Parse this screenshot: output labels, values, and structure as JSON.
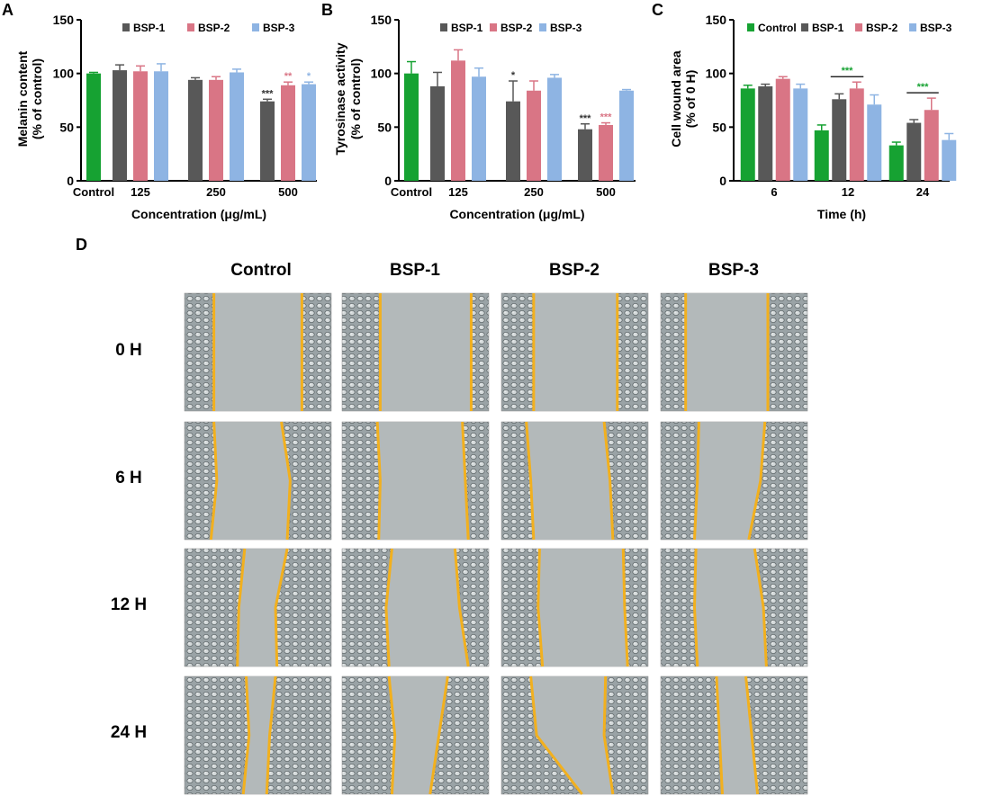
{
  "colors": {
    "Control": "#16a232",
    "BSP-1": "#585858",
    "BSP-2": "#d97585",
    "BSP-3": "#8eb4e3",
    "wound_edge": "#f2b01e",
    "sig_black": "#333333",
    "sig_pink": "#d97585",
    "sig_blue": "#8eb4e3",
    "sig_green": "#16a232"
  },
  "chart_data": [
    {
      "panel": "A",
      "type": "bar",
      "ylabel": [
        "Melanin content",
        "(% of control)"
      ],
      "xlabel": "Concentration (μg/mL)",
      "ylim": [
        0,
        150
      ],
      "yticks": [
        0,
        50,
        100,
        150
      ],
      "legend": [
        "BSP-1",
        "BSP-2",
        "BSP-3"
      ],
      "legend_position": "top",
      "groups": [
        {
          "label": "Control",
          "bars": [
            {
              "series": "Control",
              "value": 100,
              "err": 1
            }
          ]
        },
        {
          "label": "125",
          "bars": [
            {
              "series": "BSP-1",
              "value": 103,
              "err": 5
            },
            {
              "series": "BSP-2",
              "value": 102,
              "err": 5
            },
            {
              "series": "BSP-3",
              "value": 102,
              "err": 7
            }
          ]
        },
        {
          "label": "250",
          "bars": [
            {
              "series": "BSP-1",
              "value": 94,
              "err": 2
            },
            {
              "series": "BSP-2",
              "value": 94,
              "err": 3
            },
            {
              "series": "BSP-3",
              "value": 101,
              "err": 3
            }
          ]
        },
        {
          "label": "500",
          "bars": [
            {
              "series": "BSP-1",
              "value": 74,
              "err": 2,
              "sig": "***",
              "sigColor": "sig_black"
            },
            {
              "series": "BSP-2",
              "value": 89,
              "err": 3,
              "sig": "**",
              "sigColor": "sig_pink"
            },
            {
              "series": "BSP-3",
              "value": 90,
              "err": 2,
              "sig": "*",
              "sigColor": "sig_blue"
            }
          ]
        }
      ]
    },
    {
      "panel": "B",
      "type": "bar",
      "ylabel": [
        "Tyrosinase activity",
        "(% of control)"
      ],
      "xlabel": "Concentration (μg/mL)",
      "ylim": [
        0,
        150
      ],
      "yticks": [
        0,
        50,
        100,
        150
      ],
      "legend": [
        "BSP-1",
        "BSP-2",
        "BSP-3"
      ],
      "legend_position": "top",
      "groups": [
        {
          "label": "Control",
          "bars": [
            {
              "series": "Control",
              "value": 100,
              "err": 11
            }
          ]
        },
        {
          "label": "125",
          "bars": [
            {
              "series": "BSP-1",
              "value": 88,
              "err": 13
            },
            {
              "series": "BSP-2",
              "value": 112,
              "err": 10
            },
            {
              "series": "BSP-3",
              "value": 97,
              "err": 8
            }
          ]
        },
        {
          "label": "250",
          "bars": [
            {
              "series": "BSP-1",
              "value": 74,
              "err": 19,
              "sig": "*",
              "sigColor": "sig_black"
            },
            {
              "series": "BSP-2",
              "value": 84,
              "err": 9
            },
            {
              "series": "BSP-3",
              "value": 96,
              "err": 3
            }
          ]
        },
        {
          "label": "500",
          "bars": [
            {
              "series": "BSP-1",
              "value": 48,
              "err": 5,
              "sig": "***",
              "sigColor": "sig_black"
            },
            {
              "series": "BSP-2",
              "value": 52,
              "err": 2,
              "sig": "***",
              "sigColor": "sig_pink"
            },
            {
              "series": "BSP-3",
              "value": 84,
              "err": 1
            }
          ]
        }
      ]
    },
    {
      "panel": "C",
      "type": "bar",
      "ylabel": [
        "Cell wound area",
        "(% of 0 H)"
      ],
      "xlabel": "Time (h)",
      "ylim": [
        0,
        150
      ],
      "yticks": [
        0,
        50,
        100,
        150
      ],
      "legend": [
        "Control",
        "BSP-1",
        "BSP-2",
        "BSP-3"
      ],
      "legend_position": "top",
      "groups": [
        {
          "label": "6",
          "bars": [
            {
              "series": "Control",
              "value": 86,
              "err": 3
            },
            {
              "series": "BSP-1",
              "value": 88,
              "err": 2
            },
            {
              "series": "BSP-2",
              "value": 95,
              "err": 2
            },
            {
              "series": "BSP-3",
              "value": 86,
              "err": 4
            }
          ]
        },
        {
          "label": "12",
          "bracket": "***",
          "bracketColor": "sig_green",
          "bars": [
            {
              "series": "Control",
              "value": 47,
              "err": 5
            },
            {
              "series": "BSP-1",
              "value": 76,
              "err": 5
            },
            {
              "series": "BSP-2",
              "value": 86,
              "err": 6
            },
            {
              "series": "BSP-3",
              "value": 71,
              "err": 9
            }
          ]
        },
        {
          "label": "24",
          "bracket": "***",
          "bracketColor": "sig_green",
          "bars": [
            {
              "series": "Control",
              "value": 33,
              "err": 3
            },
            {
              "series": "BSP-1",
              "value": 54,
              "err": 3
            },
            {
              "series": "BSP-2",
              "value": 66,
              "err": 11
            },
            {
              "series": "BSP-3",
              "value": 38,
              "err": 6
            }
          ]
        }
      ]
    }
  ],
  "panels": {
    "A": "A",
    "B": "B",
    "C": "C",
    "D": "D"
  },
  "micrographs": {
    "columns": [
      "Control",
      "BSP-1",
      "BSP-2",
      "BSP-3"
    ],
    "rows": [
      "0 H",
      "6 H",
      "12 H",
      "24 H"
    ]
  }
}
